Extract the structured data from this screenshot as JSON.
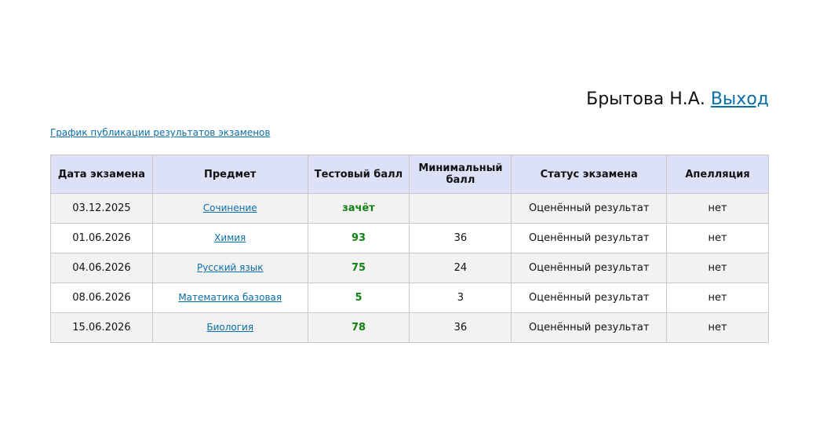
{
  "header": {
    "user": "Брытова Н.А.",
    "logout": "Выход"
  },
  "schedule_link": "График публикации результатов экзаменов",
  "table": {
    "columns": [
      "Дата экзамена",
      "Предмет",
      "Тестовый балл",
      "Минимальный балл",
      "Статус экзамена",
      "Апелляция"
    ],
    "rows": [
      [
        "03.12.2025",
        "Сочинение",
        "зачёт",
        null,
        "Оценённый результат",
        "нет"
      ],
      [
        "01.06.2026",
        "Химия",
        93,
        36,
        "Оценённый результат",
        "нет"
      ],
      [
        "04.06.2026",
        "Русский язык",
        75,
        24,
        "Оценённый результат",
        "нет"
      ],
      [
        "08.06.2026",
        "Математика базовая",
        5,
        3,
        "Оценённый результат",
        "нет"
      ],
      [
        "15.06.2026",
        "Биология",
        78,
        36,
        "Оценённый результат",
        "нет"
      ]
    ]
  }
}
